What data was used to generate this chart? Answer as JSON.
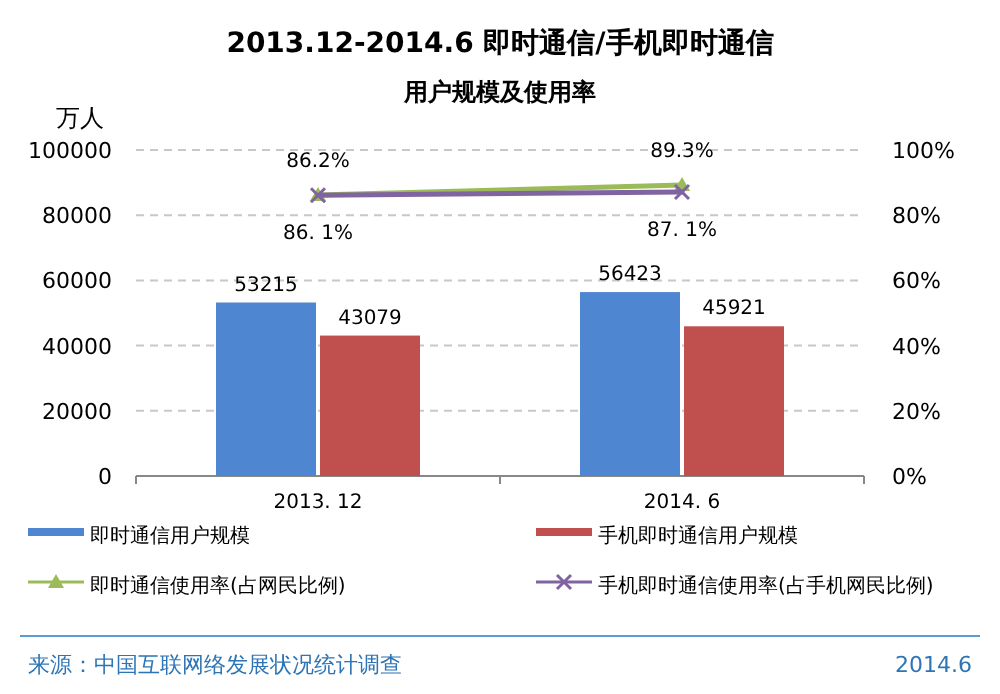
{
  "chart_data": {
    "type": "bar",
    "title": "2013.12-2014.6 即时通信/手机即时通信",
    "subtitle": "用户规模及使用率",
    "ylabel": "万人",
    "categories": [
      "2013. 12",
      "2014. 6"
    ],
    "series": [
      {
        "name": "即时通信用户规模",
        "color": "#4f86d1",
        "values": [
          53215,
          56423
        ],
        "value_labels": [
          "53215",
          "56423"
        ]
      },
      {
        "name": "手机即时通信用户规模",
        "color": "#c0504d",
        "values": [
          43079,
          45921
        ],
        "value_labels": [
          "43079",
          "45921"
        ]
      },
      {
        "name": "即时通信使用率(占网民比例)",
        "type": "line",
        "axis": "y2",
        "marker": "triangle",
        "color": "#9bbb59",
        "values": [
          86.2,
          89.3
        ],
        "value_labels": [
          "86.2%",
          "89.3%"
        ]
      },
      {
        "name": "手机即时通信使用率(占手机网民比例)",
        "type": "line",
        "axis": "y2",
        "marker": "cross",
        "color": "#8064a2",
        "values": [
          86.1,
          87.1
        ],
        "value_labels": [
          "86. 1%",
          "87. 1%"
        ]
      }
    ],
    "ylim": [
      0,
      100000
    ],
    "yticks": [
      0,
      20000,
      40000,
      60000,
      80000,
      100000
    ],
    "y2lim": [
      0,
      100
    ],
    "y2ticks": [
      {
        "value": 0,
        "label": "0%"
      },
      {
        "value": 20,
        "label": "20%"
      },
      {
        "value": 40,
        "label": "40%"
      },
      {
        "value": 60,
        "label": "60%"
      },
      {
        "value": 80,
        "label": "80%"
      },
      {
        "value": 100,
        "label": "100%"
      }
    ],
    "grid": "y",
    "legend": "bottom",
    "annotations": [
      "来源：中国互联网络发展状况统计调查",
      "2014.6"
    ]
  }
}
